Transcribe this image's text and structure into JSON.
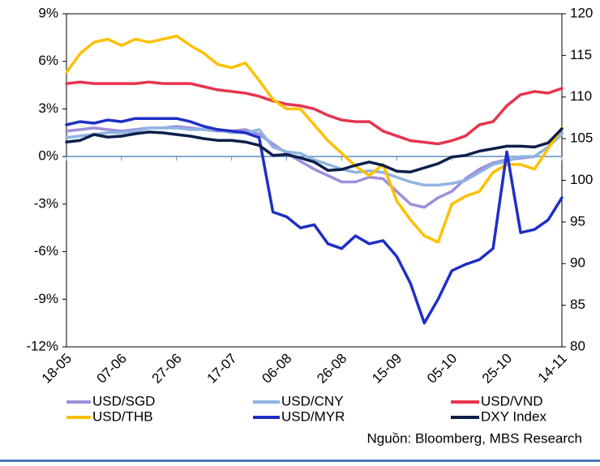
{
  "chart_data": {
    "type": "line",
    "categories": [
      "18-05",
      null,
      null,
      null,
      "07-06",
      null,
      null,
      null,
      "27-06",
      null,
      null,
      null,
      "17-07",
      null,
      null,
      null,
      "06-08",
      null,
      null,
      null,
      "26-08",
      null,
      null,
      null,
      "15-09",
      null,
      null,
      null,
      "05-10",
      null,
      null,
      null,
      "25-10",
      null,
      null,
      null,
      "14-11"
    ],
    "ylim": [
      -12,
      9
    ],
    "yticks": [
      {
        "value": -12,
        "label": "-12%"
      },
      {
        "value": -9,
        "label": "-9%"
      },
      {
        "value": -6,
        "label": "-6%"
      },
      {
        "value": -3,
        "label": "-3%"
      },
      {
        "value": 0,
        "label": "0%"
      },
      {
        "value": 3,
        "label": "3%"
      },
      {
        "value": 6,
        "label": "6%"
      },
      {
        "value": 9,
        "label": "9%"
      }
    ],
    "y2lim": [
      80,
      120
    ],
    "y2ticks": [
      80,
      85,
      90,
      95,
      100,
      105,
      110,
      115,
      120
    ],
    "grid": false,
    "legend": "bottom",
    "source": "Nguồn: Bloomberg, MBS Research",
    "series": [
      {
        "name": "USD/SGD",
        "color": "#9d8fdb",
        "values": [
          1.6,
          1.7,
          1.8,
          1.7,
          1.6,
          1.7,
          1.8,
          1.8,
          1.9,
          1.8,
          1.7,
          1.6,
          1.6,
          1.7,
          1.4,
          0.8,
          0.2,
          -0.3,
          -0.8,
          -1.2,
          -1.6,
          -1.6,
          -1.3,
          -1.4,
          -2.2,
          -3.0,
          -3.2,
          -2.6,
          -2.2,
          -1.4,
          -0.8,
          -0.4,
          -0.2,
          -0.1,
          0.0,
          0.6,
          1.5
        ]
      },
      {
        "name": "USD/CNY",
        "color": "#8fb4e3",
        "values": [
          1.2,
          1.3,
          1.4,
          1.5,
          1.5,
          1.6,
          1.8,
          1.8,
          1.8,
          1.7,
          1.7,
          1.7,
          1.5,
          1.5,
          1.7,
          0.6,
          0.3,
          0.2,
          -0.2,
          -0.5,
          -0.8,
          -1.0,
          -0.9,
          -1.0,
          -1.3,
          -1.6,
          -1.8,
          -1.8,
          -1.7,
          -1.5,
          -1.0,
          -0.5,
          -0.3,
          0.0,
          0.0,
          0.6,
          1.4
        ]
      },
      {
        "name": "USD/VND",
        "color": "#e8344e",
        "values": [
          4.6,
          4.7,
          4.6,
          4.6,
          4.6,
          4.6,
          4.7,
          4.6,
          4.6,
          4.6,
          4.4,
          4.2,
          4.1,
          4.0,
          3.8,
          3.5,
          3.3,
          3.2,
          3.0,
          2.6,
          2.3,
          2.2,
          2.2,
          1.6,
          1.3,
          1.0,
          0.9,
          0.8,
          1.0,
          1.3,
          2.0,
          2.2,
          3.2,
          3.9,
          4.1,
          4.0,
          4.3
        ]
      },
      {
        "name": "USD/THB",
        "color": "#ffc000",
        "values": [
          5.3,
          6.5,
          7.2,
          7.4,
          7.0,
          7.4,
          7.2,
          7.4,
          7.6,
          7.0,
          6.5,
          5.8,
          5.6,
          5.9,
          4.8,
          3.6,
          3.0,
          3.0,
          2.0,
          1.0,
          0.2,
          -0.6,
          -1.2,
          -0.5,
          -2.8,
          -4.0,
          -5.0,
          -5.4,
          -3.0,
          -2.5,
          -2.2,
          -1.0,
          -0.5,
          -0.5,
          -0.8,
          0.5,
          1.8
        ]
      },
      {
        "name": "USD/MYR",
        "color": "#1f2fc4",
        "values": [
          2.0,
          2.2,
          2.1,
          2.3,
          2.2,
          2.4,
          2.4,
          2.4,
          2.4,
          2.2,
          1.9,
          1.7,
          1.6,
          1.5,
          1.2,
          -3.5,
          -3.8,
          -4.5,
          -4.3,
          -5.5,
          -5.8,
          -5.0,
          -5.5,
          -5.3,
          -6.3,
          -8.0,
          -10.5,
          -9.0,
          -7.2,
          -6.8,
          -6.5,
          -5.8,
          0.3,
          -4.8,
          -4.6,
          -4.0,
          -2.6
        ]
      },
      {
        "name": "DXY Index",
        "color": "#0d1f4a",
        "axis": "y2",
        "values": [
          104.6,
          104.8,
          105.5,
          105.2,
          105.3,
          105.6,
          105.8,
          105.7,
          105.5,
          105.3,
          105.0,
          104.8,
          104.8,
          104.6,
          104.2,
          103.0,
          103.1,
          102.7,
          102.2,
          101.2,
          101.3,
          101.8,
          102.2,
          101.8,
          101.1,
          101.0,
          101.5,
          102.0,
          102.8,
          103.0,
          103.5,
          103.8,
          104.1,
          104.1,
          104.0,
          104.5,
          106.2
        ]
      }
    ]
  }
}
